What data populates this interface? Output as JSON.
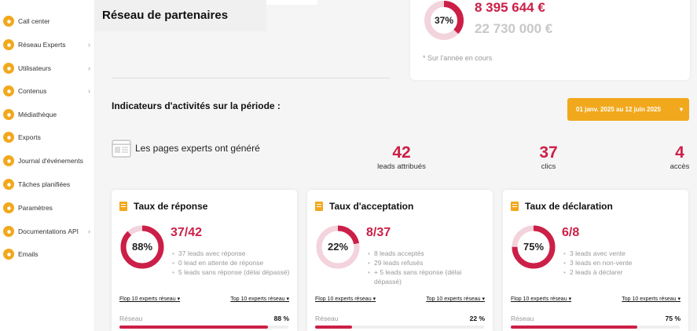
{
  "sidebar": {
    "items": [
      {
        "label": "Call center",
        "icon": "phone-icon",
        "has_children": false
      },
      {
        "label": "Réseau Experts",
        "icon": "share-icon",
        "has_children": true
      },
      {
        "label": "Utilisateurs",
        "icon": "users-icon",
        "has_children": true
      },
      {
        "label": "Contenus",
        "icon": "content-icon",
        "has_children": true
      },
      {
        "label": "Médiathèque",
        "icon": "image-icon",
        "has_children": false
      },
      {
        "label": "Exports",
        "icon": "download-icon",
        "has_children": false
      },
      {
        "label": "Journal d'événements",
        "icon": "journal-icon",
        "has_children": false
      },
      {
        "label": "Tâches planifiées",
        "icon": "calendar-icon",
        "has_children": false
      },
      {
        "label": "Paramètres",
        "icon": "gears-icon",
        "has_children": false
      },
      {
        "label": "Documentations API",
        "icon": "wrench-icon",
        "has_children": true
      },
      {
        "label": "Emails",
        "icon": "mail-icon",
        "has_children": false
      }
    ],
    "chevron": "›"
  },
  "header": {
    "title": "Réseau de partenaires"
  },
  "revenue": {
    "percent_label": "37%",
    "percent": 37,
    "amount": "8 395 644 €",
    "total": "22 730 000 €",
    "note": "* Sur l'année en cours"
  },
  "indicators": {
    "title": "Indicateurs d'activités sur la période :",
    "date_range": "01 janv. 2025 au 12 juin 2025",
    "date_caret": "▾",
    "pages_text": "Les pages experts ont généré",
    "stats": [
      {
        "value": "42",
        "label": "leads attribués"
      },
      {
        "value": "37",
        "label": "clics"
      },
      {
        "value": "4",
        "label": "accès"
      }
    ]
  },
  "cards": [
    {
      "title": "Taux de réponse",
      "percent_label": "88%",
      "percent": 88,
      "ratio": "37/42",
      "items": [
        "37 leads avec réponse",
        "0 lead en attente de réponse",
        "5 leads sans réponse (délai dépassé)"
      ],
      "flop": "Flop 10 experts réseau",
      "top": "Top 10 experts réseau",
      "network_label": "Réseau",
      "network_value": "88 %",
      "network_percent": 88
    },
    {
      "title": "Taux d'acceptation",
      "percent_label": "22%",
      "percent": 22,
      "ratio": "8/37",
      "items": [
        "8 leads acceptés",
        "29 leads refusés",
        "+ 5 leads sans réponse (délai dépassé)"
      ],
      "flop": "Flop 10 experts réseau",
      "top": "Top 10 experts réseau",
      "network_label": "Réseau",
      "network_value": "22 %",
      "network_percent": 22
    },
    {
      "title": "Taux de déclaration",
      "percent_label": "75%",
      "percent": 75,
      "ratio": "6/8",
      "items": [
        "3 leads avec vente",
        "3 leads en non-vente",
        "2 leads à déclarer"
      ],
      "flop": "Flop 10 experts réseau",
      "top": "Top 10 experts réseau",
      "network_label": "Réseau",
      "network_value": "75 %",
      "network_percent": 75
    }
  ],
  "colors": {
    "accent": "#f2a81d",
    "primary": "#cc1f47",
    "track": "#f3d3dc"
  }
}
